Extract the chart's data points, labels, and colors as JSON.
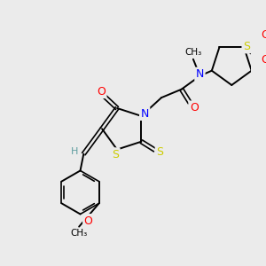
{
  "background_color": "#ebebeb",
  "bond_color": "#000000",
  "atom_colors": {
    "N": "#0000ff",
    "O": "#ff0000",
    "S": "#cccc00",
    "H": "#5f9ea0"
  },
  "figsize": [
    3.0,
    3.0
  ],
  "dpi": 100
}
